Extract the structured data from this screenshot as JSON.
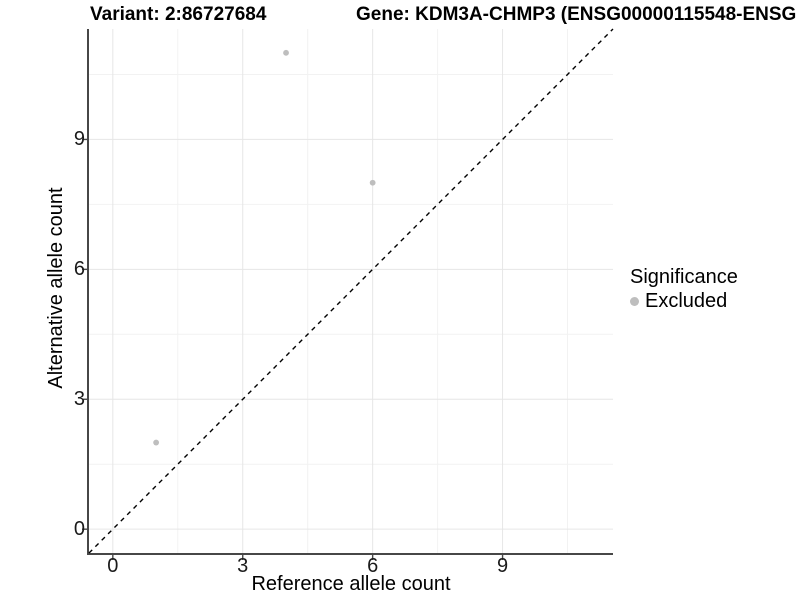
{
  "chart_data": {
    "type": "scatter",
    "title_left": "Variant: 2:86727684",
    "title_right": "Gene: KDM3A-CHMP3 (ENSG00000115548-ENSG",
    "xlabel": "Reference allele count",
    "ylabel": "Alternative allele count",
    "xlim": [
      -0.55,
      11.55
    ],
    "ylim": [
      -0.55,
      11.55
    ],
    "xticks": [
      0,
      3,
      6,
      9
    ],
    "yticks": [
      0,
      3,
      6,
      9
    ],
    "minor_ticks": [
      1.5,
      4.5,
      7.5,
      10.5
    ],
    "grid": true,
    "identity_line": {
      "style": "dashed",
      "color": "#000000"
    },
    "legend": {
      "title": "Significance",
      "position": "right",
      "items": [
        {
          "label": "Excluded",
          "color": "#bebebe"
        }
      ]
    },
    "series": [
      {
        "name": "Excluded",
        "color": "#bebebe",
        "points": [
          {
            "x": 1,
            "y": 2
          },
          {
            "x": 4,
            "y": 11
          },
          {
            "x": 6,
            "y": 8
          }
        ]
      }
    ],
    "colors": {
      "grid_major": "#e6e6e6",
      "grid_minor": "#f2f2f2",
      "axis_line": "#474747",
      "tick_text": "#1a1a1a",
      "title_text": "#000000"
    }
  }
}
